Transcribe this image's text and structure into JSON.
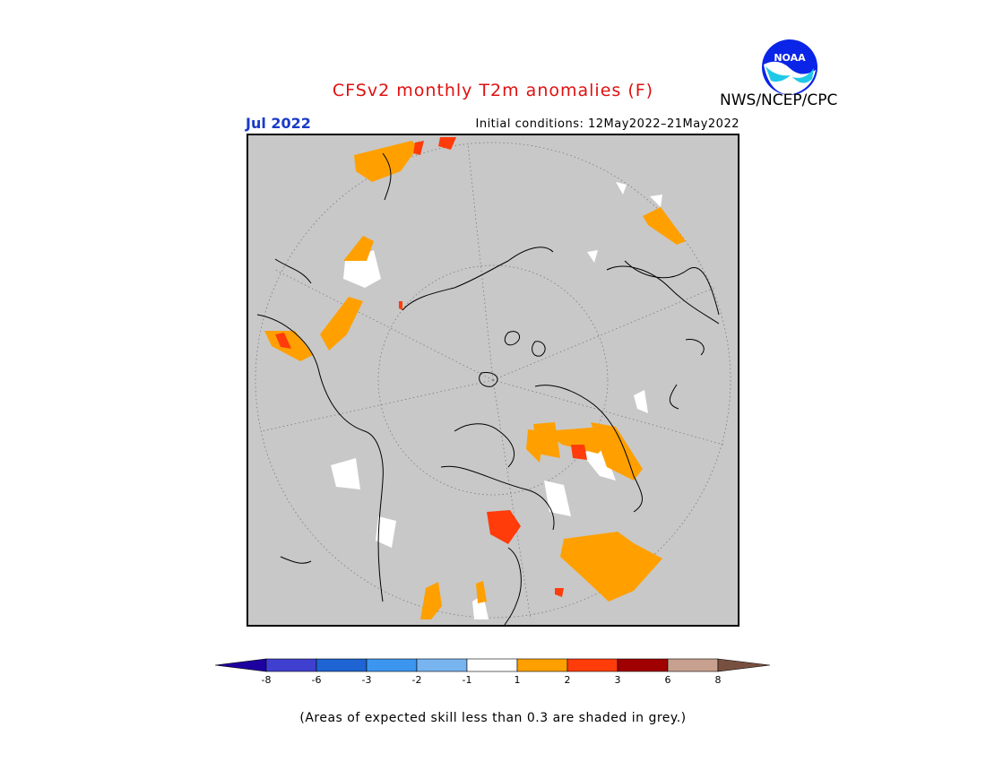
{
  "title": "CFSv2 monthly T2m anomalies (F)",
  "agency": "NWS/NCEP/CPC",
  "logo_text": "NOAA",
  "month": "Jul 2022",
  "initial_conditions": "Initial conditions: 12May2022–21May2022",
  "footnote": "(Areas of expected skill less than 0.3 are shaded in grey.)",
  "colors": {
    "title": "#e01010",
    "month": "#1a3cc8",
    "grey_mask": "#c8c8c8",
    "neutral": "#ffffff",
    "anom_1_2": "#ffa000",
    "anom_2_3": "#ff3c0a",
    "anom_3_6": "#a00000",
    "anom_6_8": "#c8a090"
  },
  "colorbar": {
    "colors": [
      "#1e00a0",
      "#4040d0",
      "#1e64d2",
      "#3c96f0",
      "#78b4f0",
      "#ffffff",
      "#ffa000",
      "#ff3c0a",
      "#a00000",
      "#c8a090",
      "#785040"
    ],
    "tick_labels": [
      "-8",
      "-6",
      "-3",
      "-2",
      "-1",
      "1",
      "2",
      "3",
      "6",
      "8"
    ]
  }
}
